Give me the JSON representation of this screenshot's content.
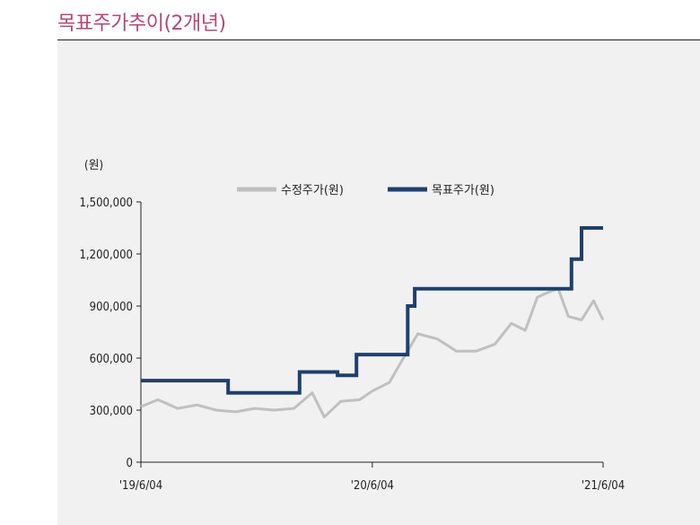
{
  "title": "목표주가추이(2개년)",
  "chart_data": {
    "type": "line",
    "unit_label": "(원)",
    "y_ticks": [
      "1,500,000",
      "1,200,000",
      "900,000",
      "600,000",
      "300,000",
      "0"
    ],
    "x_ticks": [
      "'19/6/04",
      "'20/6/04",
      "'21/6/04"
    ],
    "ylim": [
      0,
      1500000
    ],
    "xlim": [
      "2019-06-04",
      "2021-06-04"
    ],
    "grid": false,
    "legend_position": "top",
    "series": [
      {
        "name": "수정주가(원)",
        "color": "#c0c0c0",
        "x": [
          "2019-06-04",
          "2019-07-01",
          "2019-08-01",
          "2019-09-01",
          "2019-10-01",
          "2019-11-01",
          "2019-12-01",
          "2020-01-01",
          "2020-02-01",
          "2020-03-01",
          "2020-03-20",
          "2020-04-15",
          "2020-05-15",
          "2020-06-04",
          "2020-07-01",
          "2020-07-20",
          "2020-08-15",
          "2020-09-15",
          "2020-10-15",
          "2020-11-15",
          "2020-12-15",
          "2021-01-10",
          "2021-02-01",
          "2021-02-20",
          "2021-03-10",
          "2021-03-25",
          "2021-04-10",
          "2021-05-01",
          "2021-05-20",
          "2021-06-04"
        ],
        "y": [
          320000,
          360000,
          310000,
          330000,
          300000,
          290000,
          310000,
          300000,
          310000,
          400000,
          260000,
          350000,
          360000,
          410000,
          460000,
          580000,
          740000,
          710000,
          640000,
          640000,
          680000,
          800000,
          760000,
          950000,
          980000,
          1000000,
          840000,
          820000,
          930000,
          820000
        ]
      },
      {
        "name": "목표주가(원)",
        "color": "#1f3f6e",
        "x": [
          "2019-06-04",
          "2019-10-20",
          "2019-10-20",
          "2020-02-10",
          "2020-02-10",
          "2020-04-10",
          "2020-04-10",
          "2020-05-10",
          "2020-05-10",
          "2020-07-30",
          "2020-07-30",
          "2020-08-10",
          "2020-08-10",
          "2020-11-25",
          "2020-11-25",
          "2021-04-15",
          "2021-04-15",
          "2021-05-01",
          "2021-05-01",
          "2021-06-04"
        ],
        "y": [
          470000,
          470000,
          400000,
          400000,
          520000,
          520000,
          500000,
          500000,
          620000,
          620000,
          900000,
          900000,
          1000000,
          1000000,
          1000000,
          1000000,
          1170000,
          1170000,
          1350000,
          1350000
        ]
      }
    ]
  }
}
